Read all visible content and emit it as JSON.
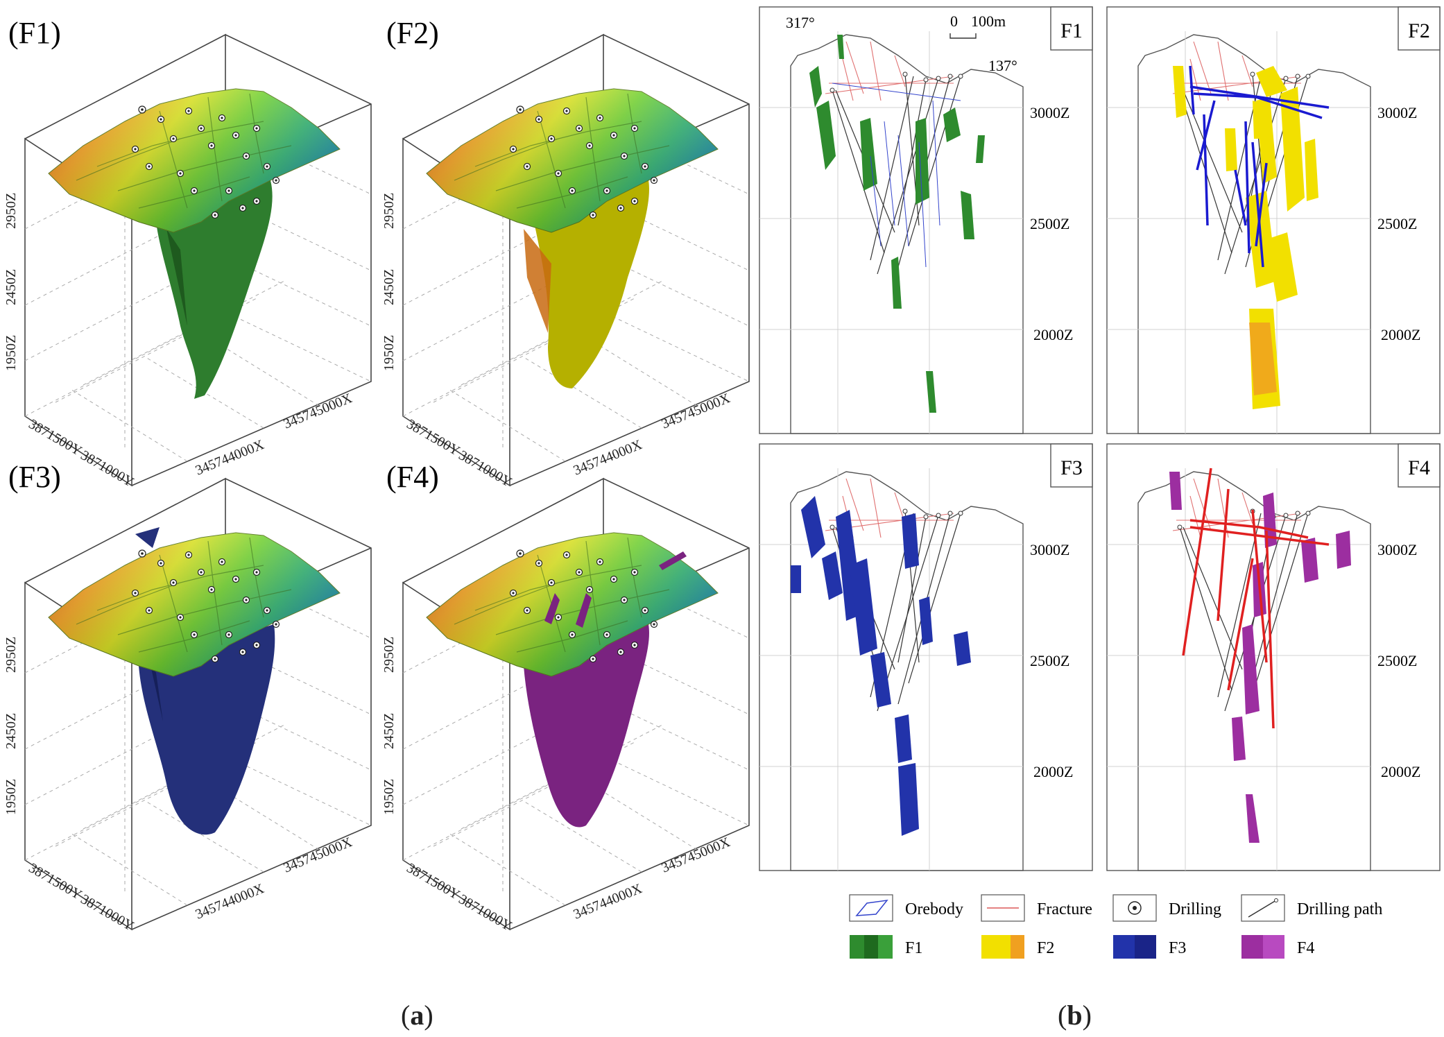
{
  "figure_a": {
    "panels": [
      {
        "id": "F1",
        "label": "(F1)",
        "color": "#2e7d2e",
        "color_dark": "#1e5a1e"
      },
      {
        "id": "F2",
        "label": "(F2)",
        "color": "#b5b000",
        "color_dark": "#c86a10"
      },
      {
        "id": "F3",
        "label": "(F3)",
        "color": "#24307a",
        "color_dark": "#16205a"
      },
      {
        "id": "F4",
        "label": "(F4)",
        "color": "#7a2380",
        "color_dark": "#5a1560"
      }
    ],
    "axis": {
      "z_ticks": [
        "2950Z",
        "2450Z",
        "1950Z"
      ],
      "y_ticks": [
        "3871500Y",
        "3871000Y"
      ],
      "x_ticks": [
        "345744000X",
        "345745000X"
      ]
    }
  },
  "figure_b": {
    "panels": [
      {
        "id": "F1",
        "label": "F1",
        "color": "#2e8b2e"
      },
      {
        "id": "F2",
        "label": "F2",
        "color": "#f2e000"
      },
      {
        "id": "F3",
        "label": "F3",
        "color": "#2233aa"
      },
      {
        "id": "F4",
        "label": "F4",
        "color": "#9c2ea0"
      }
    ],
    "z_levels": [
      "3000Z",
      "2500Z",
      "2000Z"
    ],
    "azimuth_left": "317°",
    "azimuth_right": "137°",
    "scale_zero": "0",
    "scale_label": "100m",
    "legend": {
      "orebody": "Orebody",
      "fracture": "Fracture",
      "drilling": "Drilling",
      "drilling_path": "Drilling path",
      "f1": "F1",
      "f2": "F2",
      "f3": "F3",
      "f4": "F4"
    }
  },
  "captions": {
    "a_open": "(",
    "a": "a",
    "a_close": ")",
    "b_open": "(",
    "b": "b",
    "b_close": ")"
  },
  "colors": {
    "fracture": "#e07070",
    "orebody": "#3344cc",
    "drill_path": "#333333"
  }
}
